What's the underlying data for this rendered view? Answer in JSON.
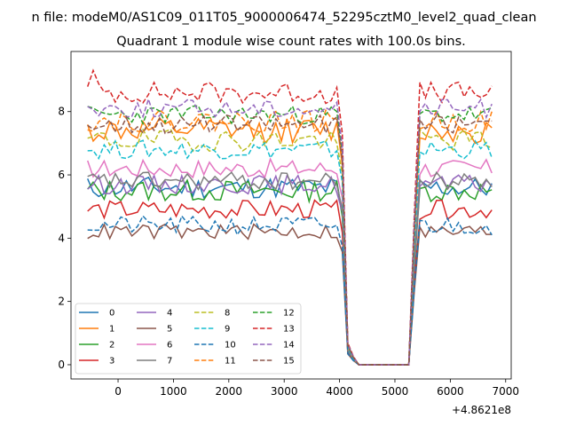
{
  "chart_data": {
    "type": "line",
    "suptitle": "n file: modeM0/AS1C09_011T05_9000006474_52295cztM0_level2_quad_clean",
    "title": "Quadrant 1 module wise count rates with 100.0s bins.",
    "xlabel": "",
    "ylabel": "",
    "x_offset_label": "+4.8621e8",
    "xlim": [
      -850,
      7100
    ],
    "ylim": [
      -0.45,
      9.9
    ],
    "xticks": [
      0,
      1000,
      2000,
      3000,
      4000,
      5000,
      6000,
      7000
    ],
    "yticks": [
      0,
      2,
      4,
      6,
      8
    ],
    "x_start": -550,
    "x_step": 100,
    "n_points": 74,
    "drop_start_index": 46,
    "gap_start_index": 49,
    "gap_end_index": 58,
    "recover_index": 59,
    "legend": {
      "placement": "lower-left",
      "columns": 4
    },
    "series": [
      {
        "name": "0",
        "color": "#1f77b4",
        "style": "solid",
        "level": 5.6,
        "noise": 0.35,
        "seed": 11
      },
      {
        "name": "1",
        "color": "#ff7f0e",
        "style": "solid",
        "level": 7.4,
        "noise": 0.4,
        "seed": 12
      },
      {
        "name": "2",
        "color": "#2ca02c",
        "style": "solid",
        "level": 5.5,
        "noise": 0.35,
        "seed": 13
      },
      {
        "name": "3",
        "color": "#d62728",
        "style": "solid",
        "level": 4.9,
        "noise": 0.3,
        "seed": 14
      },
      {
        "name": "4",
        "color": "#9467bd",
        "style": "solid",
        "level": 5.7,
        "noise": 0.3,
        "seed": 15
      },
      {
        "name": "5",
        "color": "#8c564b",
        "style": "solid",
        "level": 4.2,
        "noise": 0.25,
        "seed": 16
      },
      {
        "name": "6",
        "color": "#e377c2",
        "style": "solid",
        "level": 6.2,
        "noise": 0.3,
        "seed": 17
      },
      {
        "name": "7",
        "color": "#7f7f7f",
        "style": "solid",
        "level": 5.8,
        "noise": 0.3,
        "seed": 18
      },
      {
        "name": "8",
        "color": "#bcbd22",
        "style": "dashed",
        "level": 7.1,
        "noise": 0.35,
        "seed": 19
      },
      {
        "name": "9",
        "color": "#17becf",
        "style": "dashed",
        "level": 6.8,
        "noise": 0.3,
        "seed": 20
      },
      {
        "name": "10",
        "color": "#1f77b4",
        "style": "dashed",
        "level": 4.4,
        "noise": 0.3,
        "seed": 21
      },
      {
        "name": "11",
        "color": "#ff7f0e",
        "style": "dashed",
        "level": 7.7,
        "noise": 0.35,
        "seed": 22
      },
      {
        "name": "12",
        "color": "#2ca02c",
        "style": "dashed",
        "level": 7.9,
        "noise": 0.3,
        "seed": 23
      },
      {
        "name": "13",
        "color": "#d62728",
        "style": "dashed",
        "level": 8.6,
        "noise": 0.35,
        "seed": 24
      },
      {
        "name": "14",
        "color": "#9467bd",
        "style": "dashed",
        "level": 8.1,
        "noise": 0.3,
        "seed": 25
      },
      {
        "name": "15",
        "color": "#8c564b",
        "style": "dashed",
        "level": 7.6,
        "noise": 0.3,
        "seed": 26
      }
    ]
  }
}
